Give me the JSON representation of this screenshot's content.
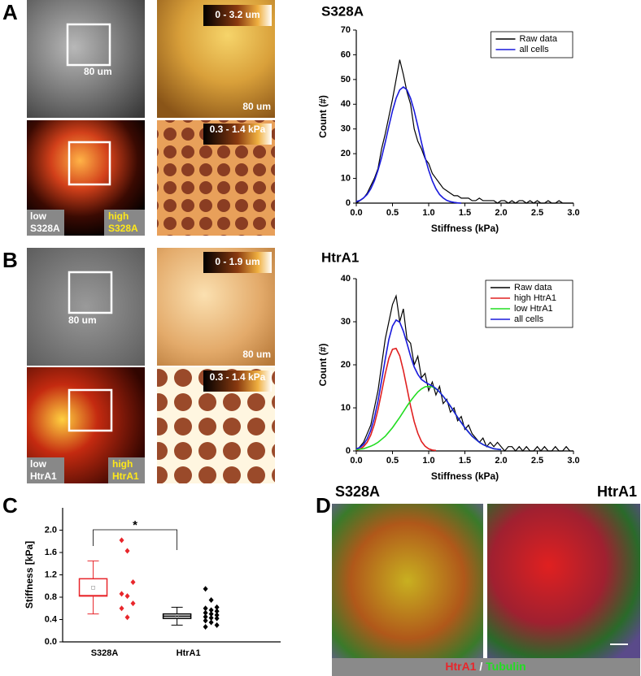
{
  "figure": {
    "letters": [
      "A",
      "B",
      "C",
      "D"
    ],
    "panel_a": {
      "scale": "80 um",
      "height_range": "0 - 3.2 um",
      "stiffness_range": "0.3 - 1.4 kPa",
      "low": [
        "low",
        "S328A"
      ],
      "high": [
        "high",
        "S328A"
      ]
    },
    "panel_b": {
      "scale": "80 um",
      "height_range": "0 - 1.9 um",
      "stiffness_range": "0.3 - 1.4 kPa",
      "low": [
        "low",
        "HtrA1"
      ],
      "high": [
        "high",
        "HtrA1"
      ]
    },
    "panel_d": {
      "left": "S328A",
      "right": "HtrA1",
      "caption": [
        "HtrA1",
        " / ",
        "Tubulin"
      ]
    }
  },
  "chart_data": [
    {
      "type": "line",
      "title": "S328A",
      "xlabel": "Stiffness (kPa)",
      "ylabel": "Count (#)",
      "legend": "upper right",
      "grid": false,
      "xlim": [
        0,
        3
      ],
      "xticks": [
        {
          "value": 0,
          "label": "0.0"
        },
        0.5,
        {
          "value": 1,
          "label": "1.0"
        },
        1.5,
        {
          "value": 2,
          "label": "2.0"
        },
        2.5,
        {
          "value": 3,
          "label": "3.0"
        }
      ],
      "ylim": [
        0,
        70
      ],
      "yticks": [
        0,
        10,
        20,
        30,
        40,
        50,
        60,
        70
      ],
      "x": [
        0,
        0.05,
        0.1,
        0.15,
        0.2,
        0.25,
        0.3,
        0.35,
        0.4,
        0.45,
        0.5,
        0.55,
        0.6,
        0.65,
        0.7,
        0.75,
        0.8,
        0.85,
        0.9,
        0.95,
        1,
        1.05,
        1.1,
        1.15,
        1.2,
        1.25,
        1.3,
        1.35,
        1.4,
        1.45,
        1.5,
        1.55,
        1.6,
        1.65,
        1.7,
        1.75,
        1.8,
        1.85,
        1.9,
        1.95,
        2,
        2.05,
        2.1,
        2.15,
        2.2,
        2.25,
        2.3,
        2.35,
        2.4,
        2.45,
        2.5,
        2.55,
        2.6,
        2.65,
        2.7,
        2.75,
        2.8,
        2.85,
        2.9,
        2.95,
        3
      ],
      "series": [
        {
          "name": "Raw data",
          "color": "#000000",
          "values": [
            0,
            1,
            2,
            4,
            7,
            10,
            14,
            22,
            28,
            35,
            42,
            50,
            58,
            52,
            45,
            40,
            30,
            25,
            22,
            18,
            16,
            12,
            10,
            8,
            6,
            5,
            4,
            3,
            3,
            2,
            2,
            2,
            1,
            1,
            2,
            1,
            1,
            1,
            1,
            0,
            1,
            1,
            0,
            1,
            0,
            1,
            1,
            0,
            1,
            0,
            1,
            0,
            0,
            1,
            0,
            0,
            1,
            0,
            0,
            0,
            0
          ]
        },
        {
          "name": "all cells",
          "color": "#1a1adc",
          "values": [
            0.6,
            1.1,
            2.1,
            3.5,
            5.8,
            9.0,
            13.3,
            18.5,
            24.6,
            31.1,
            37.3,
            42.4,
            45.8,
            47,
            45.8,
            42.4,
            37.3,
            31.1,
            24.6,
            18.5,
            13.3,
            9.0,
            5.8,
            3.5,
            2.1,
            1.1,
            0.6,
            0.3,
            0.1,
            0,
            null,
            null,
            null,
            null,
            null,
            null,
            null,
            null,
            null,
            null,
            null,
            null,
            null,
            null,
            null,
            null,
            null,
            null,
            null,
            null,
            null,
            null,
            null,
            null,
            null,
            null,
            null,
            null,
            null,
            null,
            null
          ]
        }
      ]
    },
    {
      "type": "line",
      "title": "HtrA1",
      "xlabel": "Stiffness (kPa)",
      "ylabel": "Count (#)",
      "legend": "upper right",
      "grid": false,
      "xlim": [
        0,
        3
      ],
      "xticks": [
        {
          "value": 0,
          "label": "0.0"
        },
        0.5,
        {
          "value": 1,
          "label": "1.0"
        },
        1.5,
        {
          "value": 2,
          "label": "2.0"
        },
        2.5,
        {
          "value": 3,
          "label": "3.0"
        }
      ],
      "ylim": [
        0,
        40
      ],
      "yticks": [
        0,
        10,
        20,
        30,
        40
      ],
      "x": [
        0,
        0.05,
        0.1,
        0.15,
        0.2,
        0.25,
        0.3,
        0.35,
        0.4,
        0.45,
        0.5,
        0.55,
        0.6,
        0.65,
        0.7,
        0.75,
        0.8,
        0.85,
        0.9,
        0.95,
        1,
        1.05,
        1.1,
        1.15,
        1.2,
        1.25,
        1.3,
        1.35,
        1.4,
        1.45,
        1.5,
        1.55,
        1.6,
        1.65,
        1.7,
        1.75,
        1.8,
        1.85,
        1.9,
        1.95,
        2,
        2.05,
        2.1,
        2.15,
        2.2,
        2.25,
        2.3,
        2.35,
        2.4,
        2.45,
        2.5,
        2.55,
        2.6,
        2.65,
        2.7,
        2.75,
        2.8,
        2.85,
        2.9,
        2.95,
        3
      ],
      "series": [
        {
          "name": "Raw data",
          "color": "#000000",
          "values": [
            0,
            1,
            2,
            4,
            6,
            10,
            14,
            20,
            26,
            30,
            34,
            36,
            30,
            33,
            26,
            25,
            20,
            22,
            17,
            18,
            14,
            16,
            13,
            15,
            11,
            12,
            9,
            10,
            7,
            8,
            5,
            6,
            4,
            3,
            2,
            3,
            1,
            2,
            1,
            2,
            1,
            0,
            1,
            1,
            0,
            1,
            0,
            1,
            0,
            0,
            1,
            0,
            1,
            0,
            0,
            1,
            0,
            0,
            1,
            0,
            0
          ]
        },
        {
          "name": "high HtrA1",
          "color": "#e02020",
          "values": [
            0.2,
            0.4,
            1.0,
            2.0,
            3.7,
            6.2,
            9.6,
            13.7,
            17.9,
            21.5,
            23.6,
            23.8,
            22.1,
            18.7,
            14.6,
            10.4,
            6.8,
            4.1,
            2.2,
            1.1,
            0.5,
            0.2,
            0.1,
            null,
            null,
            null,
            null,
            null,
            null,
            null,
            null,
            null,
            null,
            null,
            null,
            null,
            null,
            null,
            null,
            null,
            null,
            null,
            null,
            null,
            null,
            null,
            null,
            null,
            null,
            null,
            null,
            null,
            null,
            null,
            null,
            null,
            null,
            null,
            null,
            null,
            null
          ]
        },
        {
          "name": "low HtrA1",
          "color": "#22dd22",
          "values": [
            0.3,
            0.4,
            0.5,
            0.8,
            1.1,
            1.5,
            2.0,
            2.7,
            3.4,
            4.4,
            5.4,
            6.6,
            7.8,
            9.1,
            10.4,
            11.6,
            12.7,
            13.7,
            14.4,
            14.9,
            15,
            14.9,
            14.4,
            13.7,
            12.7,
            11.6,
            10.4,
            9.1,
            7.8,
            6.6,
            5.4,
            4.4,
            3.4,
            2.7,
            2.0,
            1.5,
            1.1,
            0.8,
            0.5,
            0.4,
            0.3,
            null,
            null,
            null,
            null,
            null,
            null,
            null,
            null,
            null,
            null,
            null,
            null,
            null,
            null,
            null,
            null,
            null,
            null,
            null,
            null
          ]
        },
        {
          "name": "all cells",
          "color": "#1a1adc",
          "values": [
            0.5,
            0.8,
            1.5,
            2.8,
            4.8,
            7.7,
            11.6,
            16.4,
            21.3,
            25.9,
            29.0,
            30.4,
            29.9,
            27.8,
            25.0,
            22.0,
            19.5,
            17.8,
            16.6,
            16.0,
            15.5,
            15.1,
            14.5,
            13.7,
            12.7,
            11.6,
            10.4,
            9.1,
            7.8,
            6.6,
            5.4,
            4.4,
            3.4,
            2.7,
            2.0,
            1.5,
            1.1,
            0.8,
            0.5,
            0.4,
            0.3,
            null,
            null,
            null,
            null,
            null,
            null,
            null,
            null,
            null,
            null,
            null,
            null,
            null,
            null,
            null,
            null,
            null,
            null,
            null,
            null
          ]
        }
      ]
    },
    {
      "type": "box",
      "ylabel": "Stiffness [kPa]",
      "annotation": "*",
      "ylim": [
        0,
        2.4
      ],
      "yticks": [
        {
          "value": 0,
          "label": "0.0"
        },
        0.4,
        0.8,
        1.2,
        1.6,
        {
          "value": 2,
          "label": "2.0"
        }
      ],
      "categories": [
        "S328A",
        "HtrA1"
      ],
      "colors": [
        "#e8262b",
        "#000000"
      ],
      "boxes": [
        {
          "whisker_low": 0.5,
          "q1": 0.82,
          "median": 0.83,
          "q3": 1.13,
          "whisker_high": 1.45,
          "mean": 0.97
        },
        {
          "whisker_low": 0.3,
          "q1": 0.42,
          "median": 0.46,
          "q3": 0.5,
          "whisker_high": 0.62,
          "mean": 0.46
        }
      ],
      "points": [
        [
          1.82,
          1.63,
          1.07,
          0.86,
          0.82,
          0.69,
          0.6,
          0.44
        ],
        [
          0.95,
          0.75,
          0.62,
          0.6,
          0.57,
          0.55,
          0.52,
          0.5,
          0.48,
          0.45,
          0.43,
          0.42,
          0.38,
          0.35,
          0.3,
          0.27
        ]
      ]
    }
  ]
}
